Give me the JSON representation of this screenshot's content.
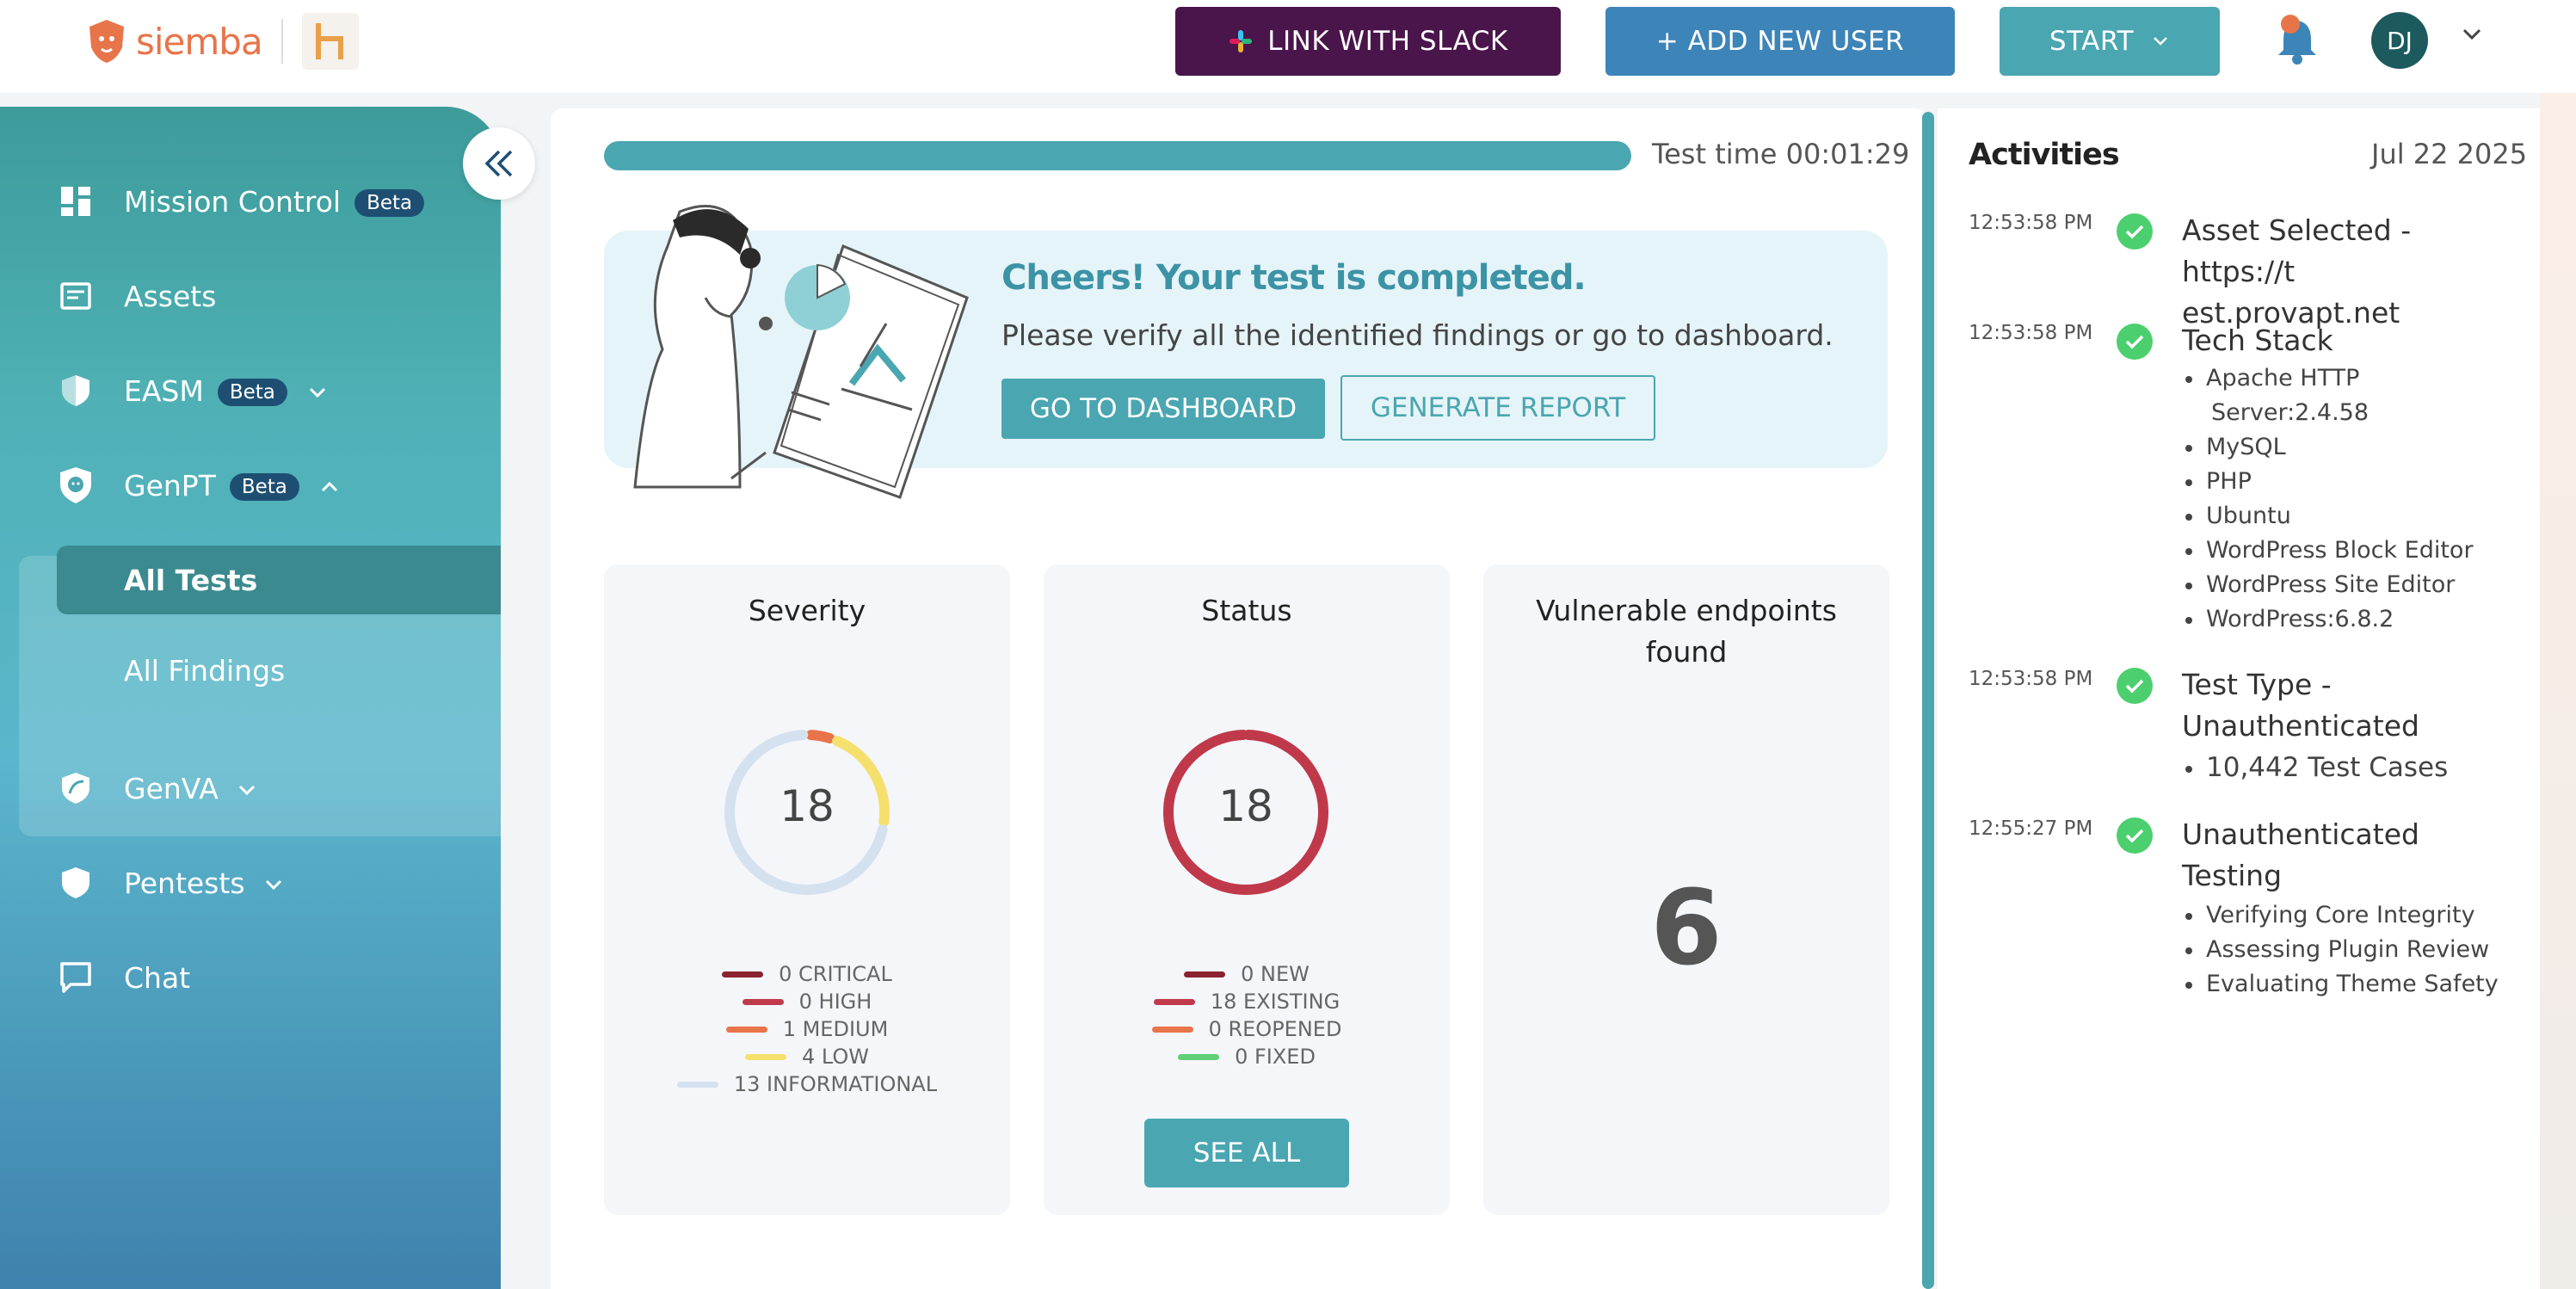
{
  "header": {
    "logo_text": "siemba",
    "slack_button": "LINK WITH SLACK",
    "add_user_button": "+ ADD NEW USER",
    "start_button": "START",
    "avatar_initials": "DJ"
  },
  "sidebar": {
    "items": [
      {
        "label": "Mission Control",
        "badge": "Beta",
        "icon": "dashboard-icon"
      },
      {
        "label": "Assets",
        "icon": "assets-icon"
      },
      {
        "label": "EASM",
        "badge": "Beta",
        "icon": "shield-half-icon"
      },
      {
        "label": "GenPT",
        "badge": "Beta",
        "icon": "lion-shield-icon"
      },
      {
        "label": "GenVA",
        "icon": "shield-leaf-icon"
      },
      {
        "label": "Pentests",
        "icon": "shield-icon"
      },
      {
        "label": "Chat",
        "icon": "chat-icon"
      }
    ],
    "genpt_sub": {
      "all_tests": "All Tests",
      "all_findings": "All Findings"
    }
  },
  "main": {
    "progress_percent": 100,
    "test_time": "Test time 00:01:29",
    "banner": {
      "title": "Cheers! Your test is completed.",
      "message": "Please verify all the identified findings or go to dashboard.",
      "dashboard_button": "GO TO DASHBOARD",
      "report_button": "GENERATE REPORT"
    },
    "severity": {
      "title": "Severity",
      "total": "18",
      "legend": [
        {
          "label": "0 CRITICAL",
          "value": 0,
          "color": "#8b2232"
        },
        {
          "label": "0 HIGH",
          "value": 0,
          "color": "#c0394a"
        },
        {
          "label": "1 MEDIUM",
          "value": 1,
          "color": "#e8744a"
        },
        {
          "label": "4 LOW",
          "value": 4,
          "color": "#f5e06e"
        },
        {
          "label": "13 INFORMATIONAL",
          "value": 13,
          "color": "#d5e1ee"
        }
      ]
    },
    "status": {
      "title": "Status",
      "total": "18",
      "legend": [
        {
          "label": "0 NEW",
          "value": 0,
          "color": "#8b2232"
        },
        {
          "label": "18 EXISTING",
          "value": 18,
          "color": "#c0394a"
        },
        {
          "label": "0 REOPENED",
          "value": 0,
          "color": "#e8744a"
        },
        {
          "label": "0 FIXED",
          "value": 0,
          "color": "#5fcf75"
        }
      ],
      "see_all": "SEE ALL"
    },
    "endpoints": {
      "title_line1": "Vulnerable endpoints",
      "title_line2": "found",
      "count": "6"
    }
  },
  "activities": {
    "title": "Activities",
    "date": "Jul 22 2025",
    "events": [
      {
        "time": "12:53:58 PM",
        "line1": "Asset Selected - https://t",
        "line2": "est.provapt.net",
        "items": []
      },
      {
        "time": "12:53:58 PM",
        "line1": "Tech Stack",
        "line2": "",
        "items": [
          "Apache HTTP",
          "Server:2.4.58",
          "MySQL",
          "PHP",
          "Ubuntu",
          "WordPress Block Editor",
          "WordPress Site Editor",
          "WordPress:6.8.2"
        ]
      },
      {
        "time": "12:53:58 PM",
        "line1": "Test Type -",
        "line2": "Unauthenticated",
        "items": [
          "10,442 Test Cases"
        ]
      },
      {
        "time": "12:55:27 PM",
        "line1": "Unauthenticated",
        "line2": "Testing",
        "items": [
          "Verifying Core Integrity",
          "Assessing Plugin Review",
          "Evaluating Theme Safety"
        ]
      }
    ]
  },
  "colors": {
    "accent": "#4aa6b0",
    "slack": "#4a154b",
    "add_user": "#3d84b8",
    "success": "#4ccf6e"
  }
}
